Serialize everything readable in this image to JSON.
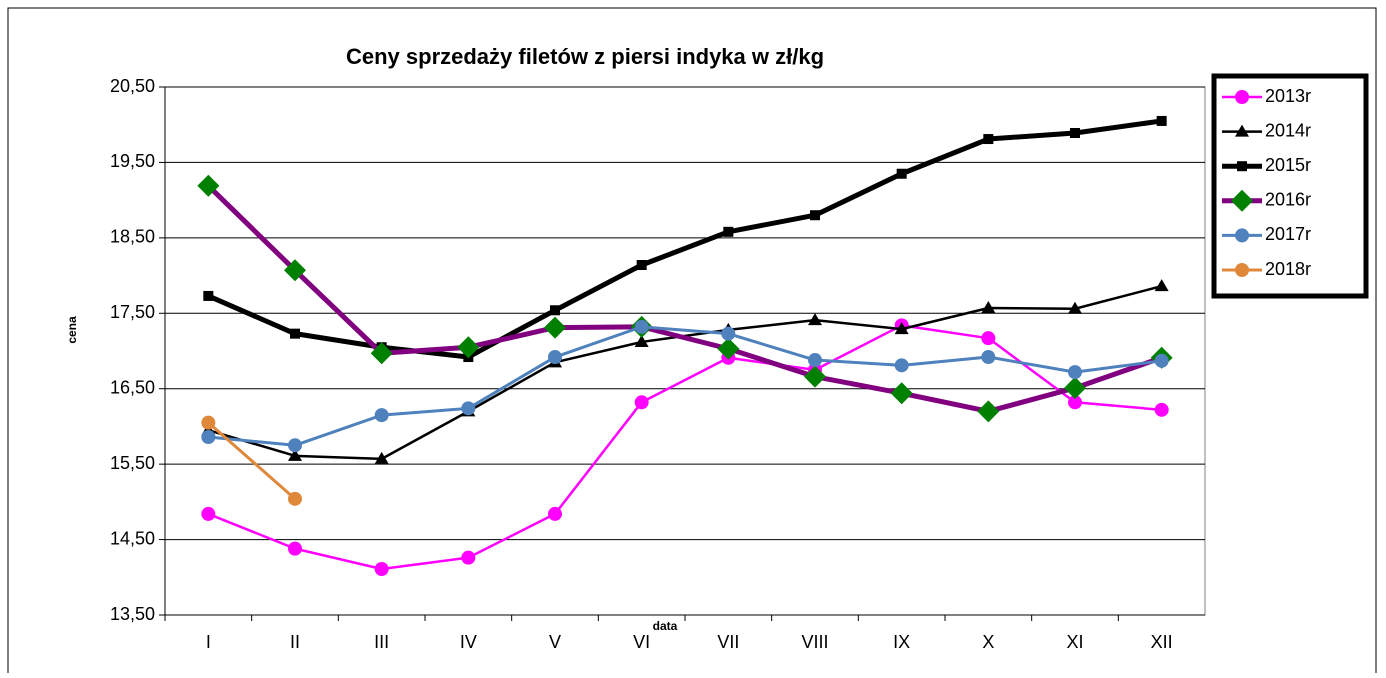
{
  "chart_data": {
    "type": "line",
    "title": "Ceny sprzedaży filetów z  piersi indyka w zł/kg",
    "x_label": "data",
    "y_label": "cena",
    "categories": [
      "I",
      "II",
      "III",
      "IV",
      "V",
      "VI",
      "VII",
      "VIII",
      "IX",
      "X",
      "XI",
      "XII"
    ],
    "ylim": [
      13.5,
      20.5
    ],
    "yticks": [
      {
        "value": 13.5,
        "label": "13,50"
      },
      {
        "value": 14.5,
        "label": "14,50"
      },
      {
        "value": 15.5,
        "label": "15,50"
      },
      {
        "value": 16.5,
        "label": "16,50"
      },
      {
        "value": 17.5,
        "label": "17,50"
      },
      {
        "value": 18.5,
        "label": "18,50"
      },
      {
        "value": 19.5,
        "label": "19,50"
      },
      {
        "value": 20.5,
        "label": "20,50"
      }
    ],
    "grid": true,
    "legend": "right",
    "series": [
      {
        "name": "2013r",
        "color": "#ff00ff",
        "marker": "circle",
        "marker_color": "#ff00ff",
        "line_width": 2.5,
        "values": [
          14.84,
          14.38,
          14.11,
          14.26,
          14.84,
          16.32,
          16.91,
          16.75,
          17.34,
          17.17,
          16.32,
          16.22
        ]
      },
      {
        "name": "2014r",
        "color": "#000000",
        "marker": "triangle",
        "marker_color": "#000000",
        "line_width": 2.5,
        "values": [
          15.95,
          15.61,
          15.57,
          16.2,
          16.85,
          17.12,
          17.28,
          17.41,
          17.29,
          17.57,
          17.56,
          17.86
        ]
      },
      {
        "name": "2015r",
        "color": "#000000",
        "marker": "square",
        "marker_color": "#000000",
        "line_width": 5,
        "values": [
          17.73,
          17.23,
          17.05,
          16.92,
          17.54,
          18.14,
          18.58,
          18.8,
          19.35,
          19.81,
          19.89,
          20.05
        ]
      },
      {
        "name": "2016r",
        "color": "#800080",
        "marker": "diamond",
        "marker_color": "#008000",
        "line_width": 5,
        "values": [
          19.19,
          18.07,
          16.97,
          17.05,
          17.31,
          17.32,
          17.03,
          16.66,
          16.44,
          16.2,
          16.51,
          16.91
        ]
      },
      {
        "name": "2017r",
        "color": "#4f81bd",
        "marker": "circle",
        "marker_color": "#4f81bd",
        "line_width": 3,
        "values": [
          15.86,
          15.75,
          16.15,
          16.24,
          16.92,
          17.32,
          17.23,
          16.88,
          16.81,
          16.92,
          16.72,
          16.87
        ]
      },
      {
        "name": "2018r",
        "color": "#e0883a",
        "marker": "circle",
        "marker_color": "#e0883a",
        "line_width": 3,
        "values": [
          16.05,
          15.04,
          null,
          null,
          null,
          null,
          null,
          null,
          null,
          null,
          null,
          null
        ]
      }
    ]
  }
}
